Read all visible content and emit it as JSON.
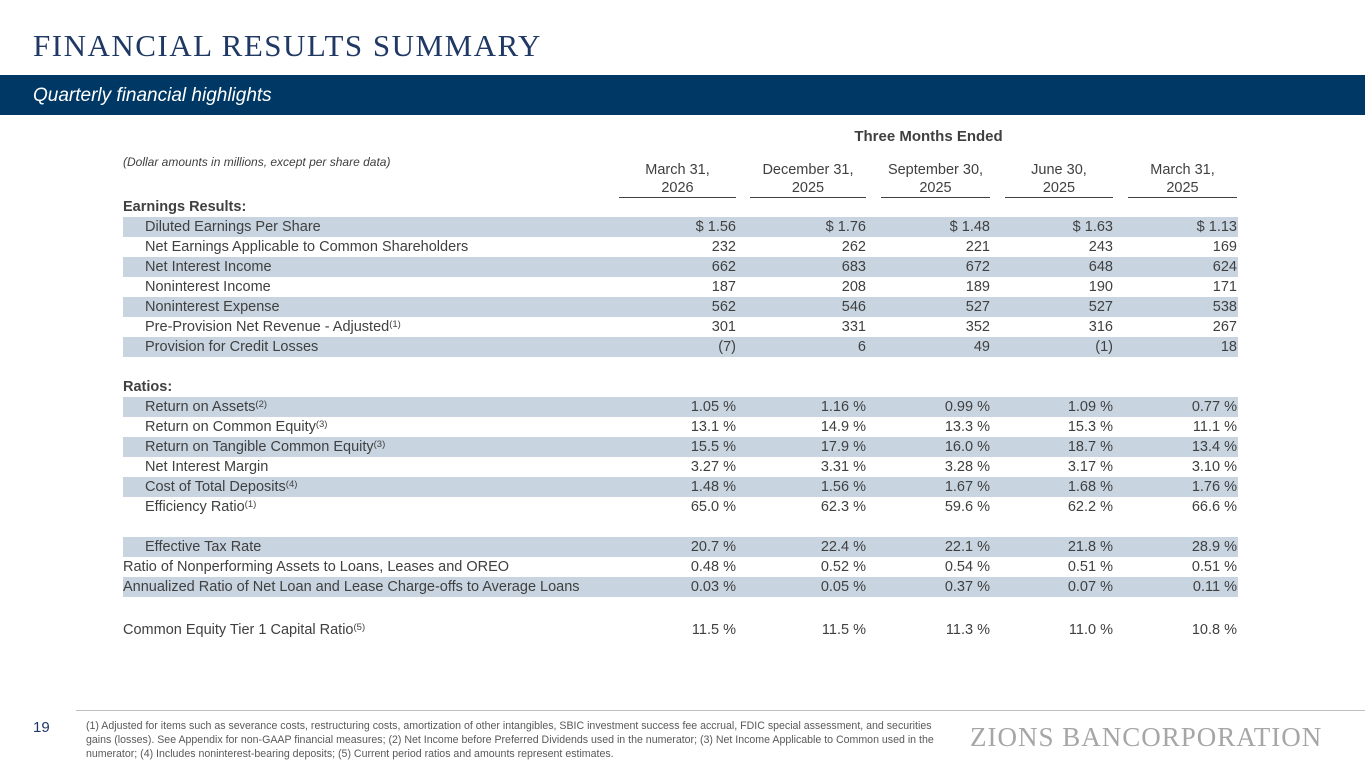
{
  "header": {
    "title": "FINANCIAL RESULTS SUMMARY",
    "subtitle": "Quarterly financial highlights"
  },
  "table": {
    "group_header": "Three Months Ended",
    "note": "(Dollar amounts in millions, except per share data)",
    "columns": [
      [
        "March 31,",
        "2026"
      ],
      [
        "December 31,",
        "2025"
      ],
      [
        "September 30,",
        "2025"
      ],
      [
        "June 30,",
        "2025"
      ],
      [
        "March 31,",
        "2025"
      ]
    ],
    "rows": [
      {
        "label": "Earnings Results:"
      },
      {
        "label": "Diluted Earnings Per Share",
        "values": [
          "$ 1.56",
          "$ 1.76",
          "$ 1.48",
          "$ 1.63",
          "$ 1.13"
        ]
      },
      {
        "label": "Net Earnings Applicable to Common Shareholders",
        "values": [
          "232",
          "262",
          "221",
          "243",
          "169"
        ]
      },
      {
        "label": "Net Interest Income",
        "values": [
          "662",
          "683",
          "672",
          "648",
          "624"
        ]
      },
      {
        "label": "Noninterest Income",
        "values": [
          "187",
          "208",
          "189",
          "190",
          "171"
        ]
      },
      {
        "label": "Noninterest Expense",
        "values": [
          "562",
          "546",
          "527",
          "527",
          "538"
        ]
      },
      {
        "label": "Pre-Provision Net Revenue - Adjusted",
        "sup": "(1)",
        "values": [
          "301",
          "331",
          "352",
          "316",
          "267"
        ]
      },
      {
        "label": "Provision for Credit Losses",
        "values": [
          "(7)",
          "6",
          "49",
          "(1)",
          "18"
        ]
      },
      {
        "label": "Ratios:"
      },
      {
        "label": "Return on Assets",
        "sup": "(2)",
        "values": [
          "1.05 %",
          "1.16 %",
          "0.99 %",
          "1.09 %",
          "0.77 %"
        ]
      },
      {
        "label": "Return on Common Equity",
        "sup": "(3)",
        "values": [
          "13.1 %",
          "14.9 %",
          "13.3 %",
          "15.3 %",
          "11.1 %"
        ]
      },
      {
        "label": "Return on Tangible Common Equity",
        "sup": "(3)",
        "values": [
          "15.5 %",
          "17.9 %",
          "16.0 %",
          "18.7 %",
          "13.4 %"
        ]
      },
      {
        "label": "Net Interest Margin",
        "values": [
          "3.27 %",
          "3.31 %",
          "3.28 %",
          "3.17 %",
          "3.10 %"
        ]
      },
      {
        "label": "Cost of Total Deposits",
        "sup": "(4)",
        "values": [
          "1.48 %",
          "1.56 %",
          "1.67 %",
          "1.68 %",
          "1.76 %"
        ]
      },
      {
        "label": "Efficiency Ratio",
        "sup": "(1)",
        "values": [
          "65.0 %",
          "62.3 %",
          "59.6 %",
          "62.2 %",
          "66.6 %"
        ]
      },
      {
        "label": "Effective Tax Rate",
        "values": [
          "20.7 %",
          "22.4 %",
          "22.1 %",
          "21.8 %",
          "28.9 %"
        ]
      },
      {
        "label": "Ratio of Nonperforming Assets to Loans, Leases and OREO",
        "values": [
          "0.48 %",
          "0.52 %",
          "0.54 %",
          "0.51 %",
          "0.51 %"
        ]
      },
      {
        "label": "Annualized Ratio of Net Loan and Lease Charge-offs to Average Loans",
        "values": [
          "0.03 %",
          "0.05 %",
          "0.37 %",
          "0.07 %",
          "0.11 %"
        ]
      },
      {
        "label": "Common Equity Tier 1 Capital Ratio",
        "sup": "(5)",
        "values": [
          "11.5 %",
          "11.5 %",
          "11.3 %",
          "11.0 %",
          "10.8 %"
        ]
      }
    ]
  },
  "footer": {
    "page": "19",
    "footnote": "(1) Adjusted for items such as severance costs, restructuring costs, amortization of other intangibles, SBIC investment success fee accrual, FDIC special assessment, and securities gains (losses). See Appendix for non-GAAP financial measures; (2) Net Income before Preferred Dividends used in the numerator; (3) Net Income Applicable to Common used in the numerator; (4) Includes noninterest-bearing deposits; (5) Current period ratios and amounts represent estimates.",
    "logo": "ZIONS BANCORPORATION"
  }
}
